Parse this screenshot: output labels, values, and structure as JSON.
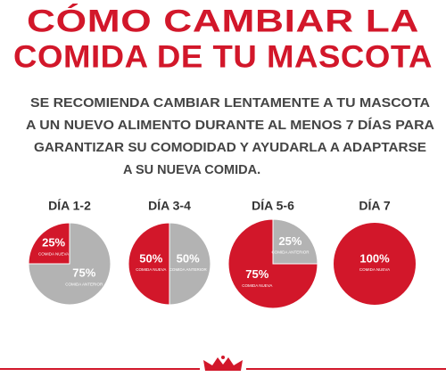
{
  "title": [
    "CÓMO CAMBIAR LA",
    "COMIDA DE TU MASCOTA"
  ],
  "text": [
    "SE RECOMIENDA CAMBIAR LENTAMENTE A TU MASCOTA",
    "A UN NUEVO ALIMENTO DURANTE AL MENOS 7 DÍAS PARA",
    "GARANTIZAR SU COMODIDAD Y AYUDARLA A ADAPTARSE",
    "A SU NUEVA COMIDA."
  ],
  "chart_data": [
    {
      "type": "pie",
      "title": "DÍA 1-2",
      "categories": [
        "COMIDA NUEVA",
        "COMIDA ANTERIOR"
      ],
      "values": [
        25,
        75
      ],
      "value_labels": [
        "25%",
        "75%"
      ],
      "colors": [
        "#d2172a",
        "#b3b3b3"
      ]
    },
    {
      "type": "pie",
      "title": "DÍA 3-4",
      "categories": [
        "COMIDA NUEVA",
        "COMIDA ANTERIOR"
      ],
      "values": [
        50,
        50
      ],
      "value_labels": [
        "50%",
        "50%"
      ],
      "colors": [
        "#d2172a",
        "#b3b3b3"
      ]
    },
    {
      "type": "pie",
      "title": "DÍA 5-6",
      "categories": [
        "COMIDA NUEVA",
        "COMIDA ANTERIOR"
      ],
      "values": [
        75,
        25
      ],
      "value_labels": [
        "75%",
        "25%"
      ],
      "colors": [
        "#d2172a",
        "#b3b3b3"
      ]
    },
    {
      "type": "pie",
      "title": "DÍA 7",
      "categories": [
        "COMIDA NUEVA"
      ],
      "values": [
        100
      ],
      "value_labels": [
        "100%"
      ],
      "colors": [
        "#d2172a"
      ]
    }
  ]
}
